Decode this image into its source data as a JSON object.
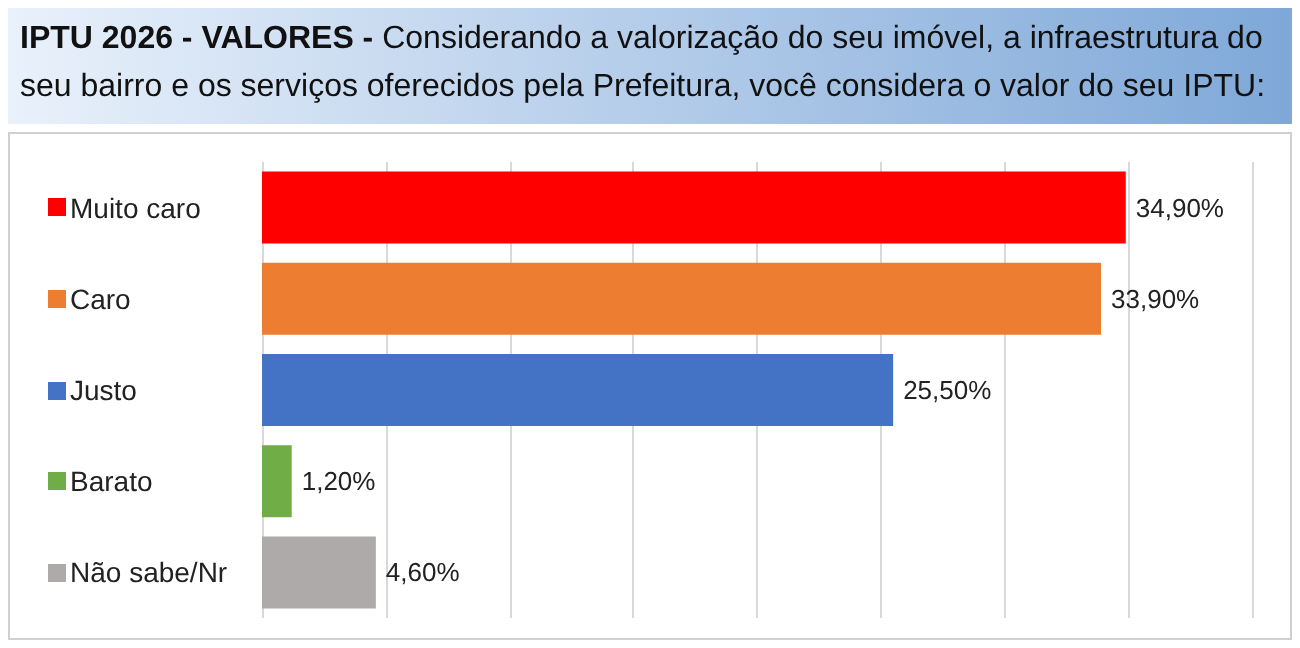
{
  "chart_data": {
    "type": "bar",
    "orientation": "horizontal",
    "title": "IPTU 2026 - VALORES -",
    "subtitle": "Considerando a valorização do seu imóvel, a infraestrutura do seu bairro e os serviços oferecidos pela Prefeitura, você considera o valor do seu IPTU:",
    "categories": [
      "Muito caro",
      "Caro",
      "Justo",
      "Barato",
      "Não sabe/Nr"
    ],
    "values": [
      34.9,
      33.9,
      25.5,
      1.2,
      4.6
    ],
    "colors": [
      "#ff0000",
      "#ed7d31",
      "#4472c4",
      "#70ad47",
      "#aeaaaa"
    ],
    "value_labels": [
      "34,90%",
      "33,90%",
      "25,50%",
      "1,20%",
      "4,60%"
    ],
    "xlim": [
      0,
      40
    ],
    "xticks": [
      {
        "value": 0,
        "label": null
      },
      {
        "value": 5,
        "label": null
      },
      {
        "value": 10,
        "label": null
      },
      {
        "value": 15,
        "label": null
      },
      {
        "value": 20,
        "label": null
      },
      {
        "value": 25,
        "label": null
      },
      {
        "value": 30,
        "label": null
      },
      {
        "value": 35,
        "label": null
      },
      {
        "value": 40,
        "label": null
      }
    ],
    "tick_labels": "y",
    "grid": "x"
  }
}
